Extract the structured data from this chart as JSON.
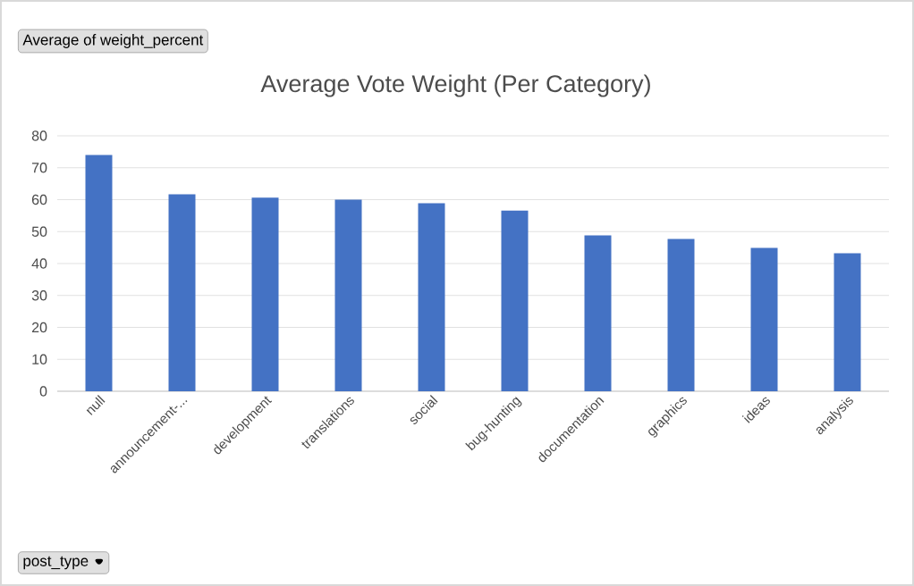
{
  "chart_data": {
    "type": "bar",
    "title": "Average Vote Weight (Per Category)",
    "categories": [
      "null",
      "announcement-...",
      "development",
      "translations",
      "social",
      "bug-hunting",
      "documentation",
      "graphics",
      "ideas",
      "analysis"
    ],
    "values": [
      74.0,
      61.7,
      60.6,
      60.0,
      58.9,
      56.6,
      48.8,
      47.7,
      44.9,
      43.2
    ],
    "color": "#4472c4",
    "ylim": [
      0,
      80
    ],
    "yticks": [
      0,
      10,
      20,
      30,
      40,
      50,
      60,
      70,
      80
    ],
    "grid": "y",
    "annotations": [
      "Average of weight_percent",
      "post_type"
    ]
  }
}
